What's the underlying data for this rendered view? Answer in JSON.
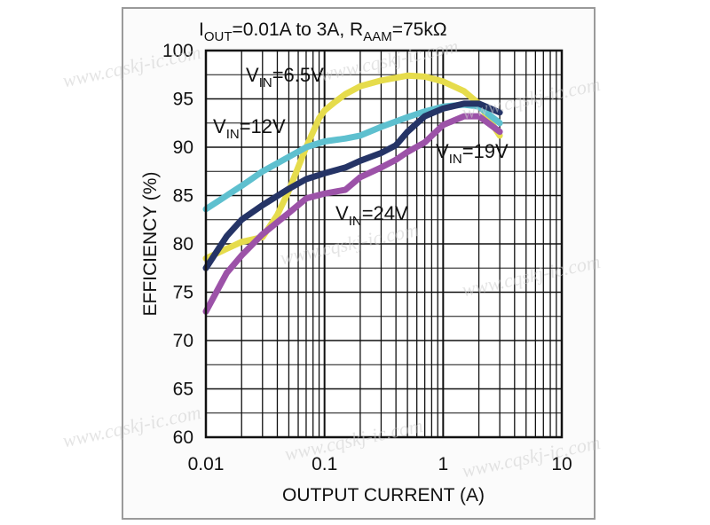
{
  "chart_data": {
    "type": "line",
    "title": {
      "main": "I",
      "sub1": "OUT",
      "mid": "=0.01A to 3A, R",
      "sub2": "AAM",
      "end": "=75kΩ"
    },
    "xlabel": "OUTPUT CURRENT (A)",
    "ylabel": "EFFICIENCY (%)",
    "xscale": "log",
    "xlim": [
      0.01,
      10
    ],
    "ylim": [
      60,
      100
    ],
    "grid": true,
    "x_ticks": [
      {
        "value": 0.01,
        "label": "0.01"
      },
      {
        "value": 0.1,
        "label": "0.1"
      },
      {
        "value": 1,
        "label": "1"
      },
      {
        "value": 10,
        "label": "10"
      }
    ],
    "y_ticks": [
      60,
      65,
      70,
      75,
      80,
      85,
      90,
      95,
      100
    ],
    "series": [
      {
        "name": "VIN=6.5V",
        "color": "#e6dc4c",
        "x": [
          0.01,
          0.015,
          0.02,
          0.03,
          0.04,
          0.05,
          0.07,
          0.09,
          0.1,
          0.12,
          0.15,
          0.2,
          0.3,
          0.5,
          0.7,
          1,
          1.5,
          2,
          3
        ],
        "y": [
          78.5,
          79.5,
          80.2,
          80.7,
          83,
          85.5,
          90,
          93,
          93.8,
          94.6,
          95.5,
          96.3,
          96.9,
          97.4,
          97.3,
          96.8,
          95.8,
          94.5,
          91.2
        ]
      },
      {
        "name": "VIN=12V",
        "color": "#5ec0cf",
        "x": [
          0.01,
          0.015,
          0.02,
          0.03,
          0.05,
          0.07,
          0.1,
          0.15,
          0.2,
          0.3,
          0.5,
          0.7,
          1,
          1.5,
          2,
          3
        ],
        "y": [
          83.6,
          85,
          86,
          87.5,
          89,
          90,
          90.6,
          90.9,
          91.2,
          92.1,
          93.1,
          93.7,
          94.2,
          94.4,
          94.2,
          92.5
        ]
      },
      {
        "name": "VIN=19V",
        "color": "#253466",
        "x": [
          0.01,
          0.015,
          0.02,
          0.03,
          0.05,
          0.07,
          0.1,
          0.15,
          0.2,
          0.3,
          0.4,
          0.5,
          0.7,
          1,
          1.5,
          2,
          3
        ],
        "y": [
          77.5,
          80.8,
          82.5,
          84,
          85.7,
          86.7,
          87.3,
          87.9,
          88.6,
          89.4,
          90.2,
          91.6,
          93.2,
          94,
          94.5,
          94.5,
          93.6
        ]
      },
      {
        "name": "VIN=24V",
        "color": "#9c52a8",
        "x": [
          0.01,
          0.015,
          0.02,
          0.03,
          0.05,
          0.07,
          0.1,
          0.15,
          0.2,
          0.3,
          0.4,
          0.5,
          0.7,
          1,
          1.5,
          2,
          3
        ],
        "y": [
          73,
          77,
          78.8,
          81,
          83.2,
          84.7,
          85.2,
          85.6,
          86.9,
          87.9,
          88.7,
          89.5,
          90.5,
          92.3,
          93.2,
          93.2,
          91.6
        ]
      }
    ],
    "annotations": [
      {
        "series": "VIN=6.5V",
        "pre": "V",
        "sub": "IN",
        "post": "=6.5V"
      },
      {
        "series": "VIN=12V",
        "pre": "V",
        "sub": "IN",
        "post": "=12V"
      },
      {
        "series": "VIN=19V",
        "pre": "V",
        "sub": "IN",
        "post": "=19V"
      },
      {
        "series": "VIN=24V",
        "pre": "V",
        "sub": "IN",
        "post": "=24V"
      }
    ]
  },
  "watermark": "www.cqskj-ic.com",
  "colors": {
    "frame": "#9a9a9a",
    "grid": "#111111",
    "background": "#ffffff"
  }
}
